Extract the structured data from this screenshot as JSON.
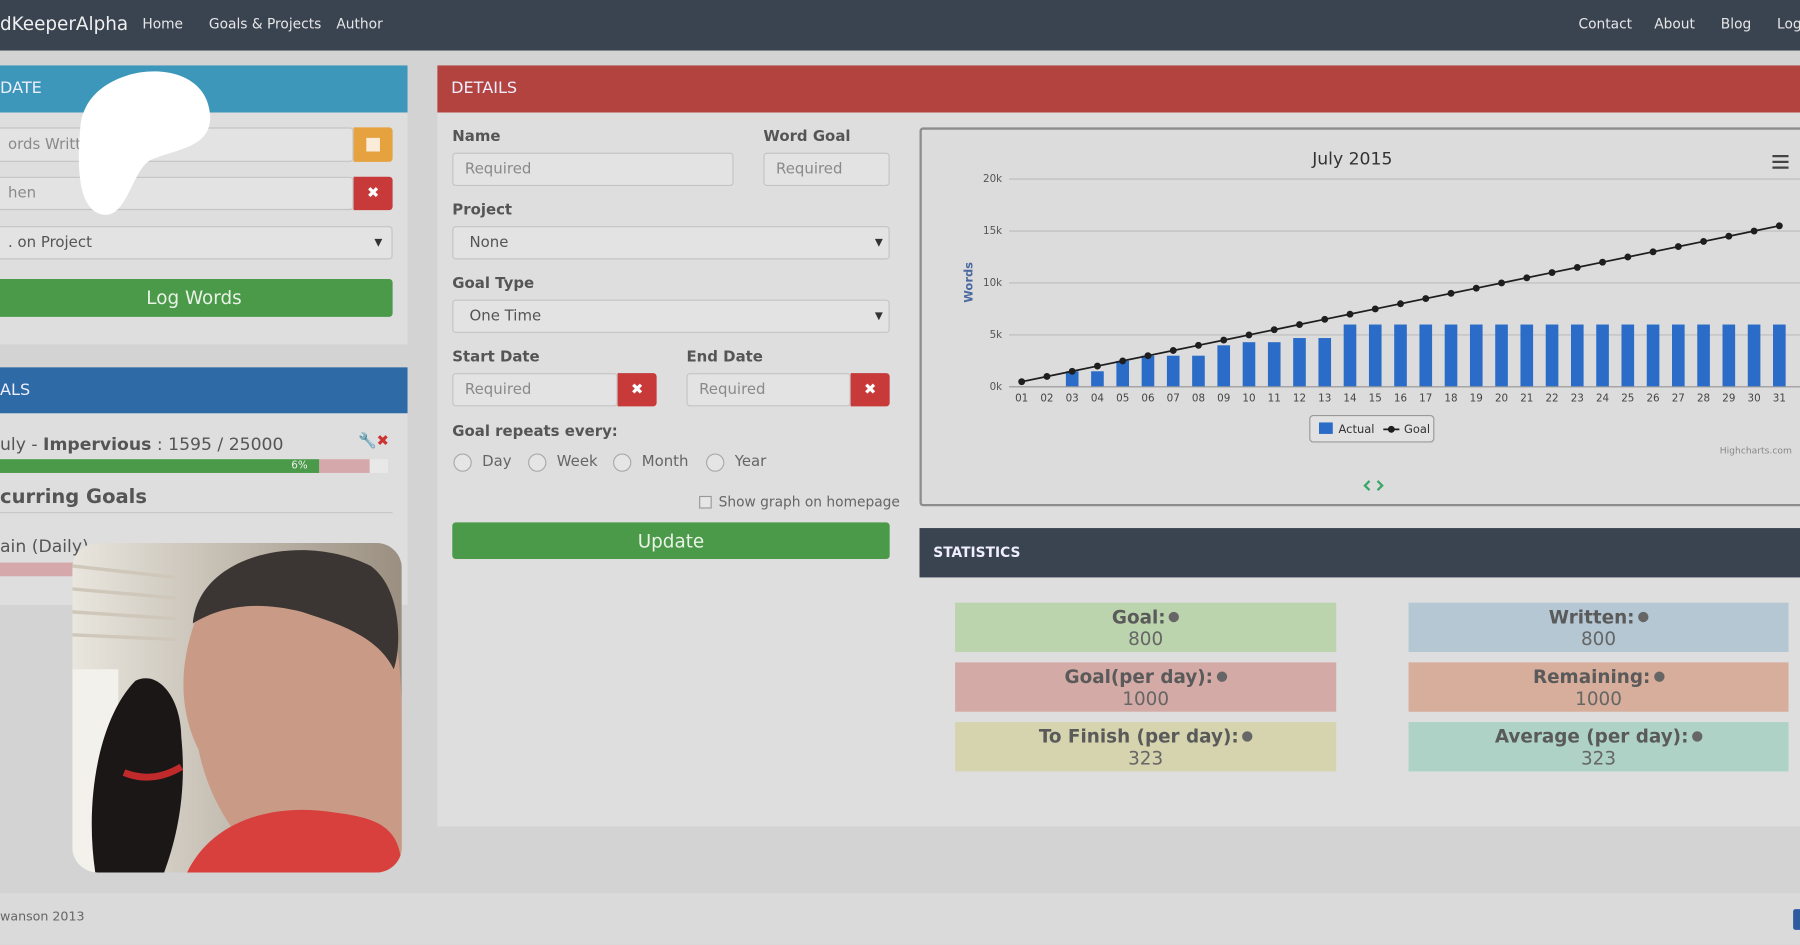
{
  "nav": {
    "brand": "dKeeperAlpha",
    "links": [
      "Home",
      "Goals & Projects",
      "Author"
    ],
    "right_links": [
      "Contact",
      "About",
      "Blog",
      "Log"
    ]
  },
  "update_panel": {
    "title": "DATE",
    "words_placeholder": "ords Written",
    "when_placeholder": "hen",
    "project_value": ". on Project",
    "button": "Log Words"
  },
  "goals_panel": {
    "title": "ALS",
    "goal_prefix": "uly - ",
    "goal_name": "Impervious",
    "goal_progress": " : 1595 / 25000",
    "progress_label": "6%",
    "recurring_title": "curring Goals",
    "recurring_item": "ain (Daily) :"
  },
  "details": {
    "title": "DETAILS",
    "name_label": "Name",
    "name_placeholder": "Required",
    "word_goal_label": "Word Goal",
    "word_goal_placeholder": "Required",
    "project_label": "Project",
    "project_value": "None",
    "goal_type_label": "Goal Type",
    "goal_type_value": "One Time",
    "start_label": "Start Date",
    "start_placeholder": "Required",
    "end_label": "End Date",
    "end_placeholder": "Required",
    "repeat_label": "Goal repeats every:",
    "repeat_options": [
      "Day",
      "Week",
      "Month",
      "Year"
    ],
    "show_graph": "Show graph on homepage",
    "button": "Update"
  },
  "chart_data": {
    "type": "bar_line",
    "title": "July 2015",
    "y_label": "Words",
    "credit": "Highcharts.com",
    "categories": [
      "01",
      "02",
      "03",
      "04",
      "05",
      "06",
      "07",
      "08",
      "09",
      "10",
      "11",
      "12",
      "13",
      "14",
      "15",
      "16",
      "17",
      "18",
      "19",
      "20",
      "21",
      "22",
      "23",
      "24",
      "25",
      "26",
      "27",
      "28",
      "29",
      "30",
      "31"
    ],
    "series": [
      {
        "name": "Actual",
        "color": "#2a6cc8",
        "values": [
          0,
          0,
          1500,
          1500,
          2500,
          3000,
          3000,
          3000,
          4000,
          4300,
          4300,
          4700,
          4700,
          6000,
          6000,
          6000,
          6000,
          6000,
          6000,
          6000,
          6000,
          6000,
          6000,
          6000,
          6000,
          6000,
          6000,
          6000,
          6000,
          6000,
          6000
        ]
      },
      {
        "name": "Goal",
        "color": "#1e1e1e",
        "values": [
          500,
          1000,
          1500,
          2000,
          2500,
          3000,
          3500,
          4000,
          4500,
          5000,
          5500,
          6000,
          6500,
          7000,
          7500,
          8000,
          8500,
          9000,
          9500,
          10000,
          10500,
          11000,
          11500,
          12000,
          12500,
          13000,
          13500,
          14000,
          14500,
          15000,
          15500
        ]
      }
    ],
    "ylim": [
      0,
      20000
    ],
    "yticks": [
      {
        "value": 0,
        "label": "0k"
      },
      {
        "value": 5000,
        "label": "5k"
      },
      {
        "value": 10000,
        "label": "10k"
      },
      {
        "value": 15000,
        "label": "15k"
      },
      {
        "value": 20000,
        "label": "20k"
      }
    ],
    "grid": true
  },
  "statistics": {
    "title": "STATISTICS",
    "items": [
      {
        "label": "Goal:",
        "value": 800
      },
      {
        "label": "Written:",
        "value": 800
      },
      {
        "label": "Goal(per day):",
        "value": 1000
      },
      {
        "label": "Remaining:",
        "value": 1000
      },
      {
        "label": "To Finish (per day):",
        "value": 323
      },
      {
        "label": "Average (per day):",
        "value": 323
      }
    ]
  },
  "footer": {
    "text": "wanson 2013"
  }
}
